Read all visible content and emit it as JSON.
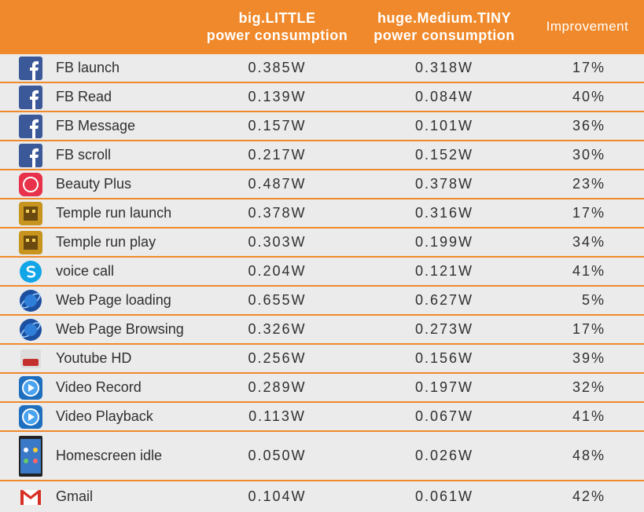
{
  "header": [
    "",
    "big.LITTLE\npower consumption",
    "huge.Medium.TINY\npower consumption",
    "Improvement"
  ],
  "rows": [
    [
      "FB launch",
      "0.385W",
      "0.318W",
      "17%"
    ],
    [
      "FB Read",
      "0.139W",
      "0.084W",
      "40%"
    ],
    [
      "FB Message",
      "0.157W",
      "0.101W",
      "36%"
    ],
    [
      "FB scroll",
      "0.217W",
      "0.152W",
      "30%"
    ],
    [
      "Beauty Plus",
      "0.487W",
      "0.378W",
      "23%"
    ],
    [
      "Temple run launch",
      "0.378W",
      "0.316W",
      "17%"
    ],
    [
      "Temple run play",
      "0.303W",
      "0.199W",
      "34%"
    ],
    [
      "voice call",
      "0.204W",
      "0.121W",
      "41%"
    ],
    [
      "Web Page loading",
      "0.655W",
      "0.627W",
      "5%"
    ],
    [
      "Web Page Browsing",
      "0.326W",
      "0.273W",
      "17%"
    ],
    [
      "Youtube HD",
      "0.256W",
      "0.156W",
      "39%"
    ],
    [
      "Video Record",
      "0.289W",
      "0.197W",
      "32%"
    ],
    [
      "Video Playback",
      "0.113W",
      "0.067W",
      "41%"
    ],
    [
      "Homescreen idle",
      "0.050W",
      "0.026W",
      "48%"
    ],
    [
      "Gmail",
      "0.104W",
      "0.061W",
      "42%"
    ]
  ]
}
